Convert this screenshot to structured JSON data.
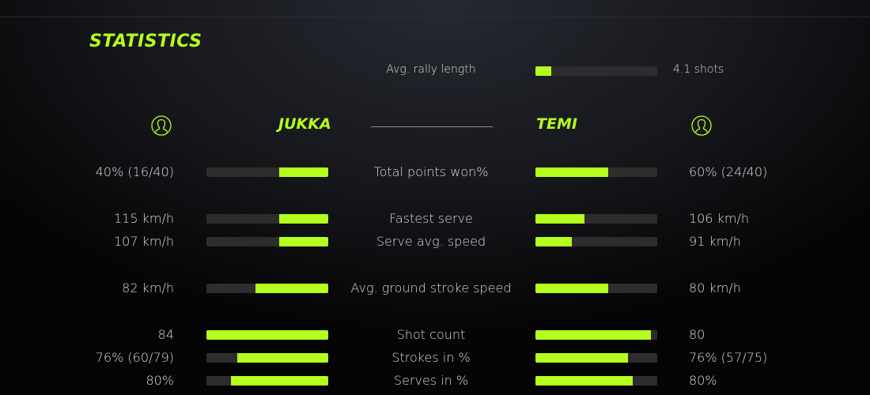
{
  "title": "STATISTICS",
  "accent": "#b4ff1e",
  "rally": {
    "label": "Avg. rally length",
    "value": "4.1 shots",
    "fraction": 0.13
  },
  "players": {
    "left": {
      "name": "JUKKA",
      "icon": "user-icon"
    },
    "right": {
      "name": "TEMI",
      "icon": "user-icon"
    }
  },
  "stats": [
    {
      "label": "Total points won%",
      "left": "40% (16/40)",
      "right": "60% (24/40)",
      "left_fraction": 0.4,
      "right_fraction": 0.6
    },
    {
      "label": "Fastest serve",
      "left": "115 km/h",
      "right": "106 km/h",
      "left_fraction": 0.4,
      "right_fraction": 0.4
    },
    {
      "label": "Serve avg. speed",
      "left": "107 km/h",
      "right": "91 km/h",
      "left_fraction": 0.4,
      "right_fraction": 0.3
    },
    {
      "label": "Avg. ground stroke speed",
      "left": "82 km/h",
      "right": "80 km/h",
      "left_fraction": 0.6,
      "right_fraction": 0.6
    },
    {
      "label": "Shot count",
      "left": "84",
      "right": "80",
      "left_fraction": 1.0,
      "right_fraction": 0.95
    },
    {
      "label": "Strokes in %",
      "left": "76% (60/79)",
      "right": "76% (57/75)",
      "left_fraction": 0.75,
      "right_fraction": 0.76
    },
    {
      "label": "Serves in %",
      "left": "80%",
      "right": "80%",
      "left_fraction": 0.8,
      "right_fraction": 0.8
    }
  ]
}
